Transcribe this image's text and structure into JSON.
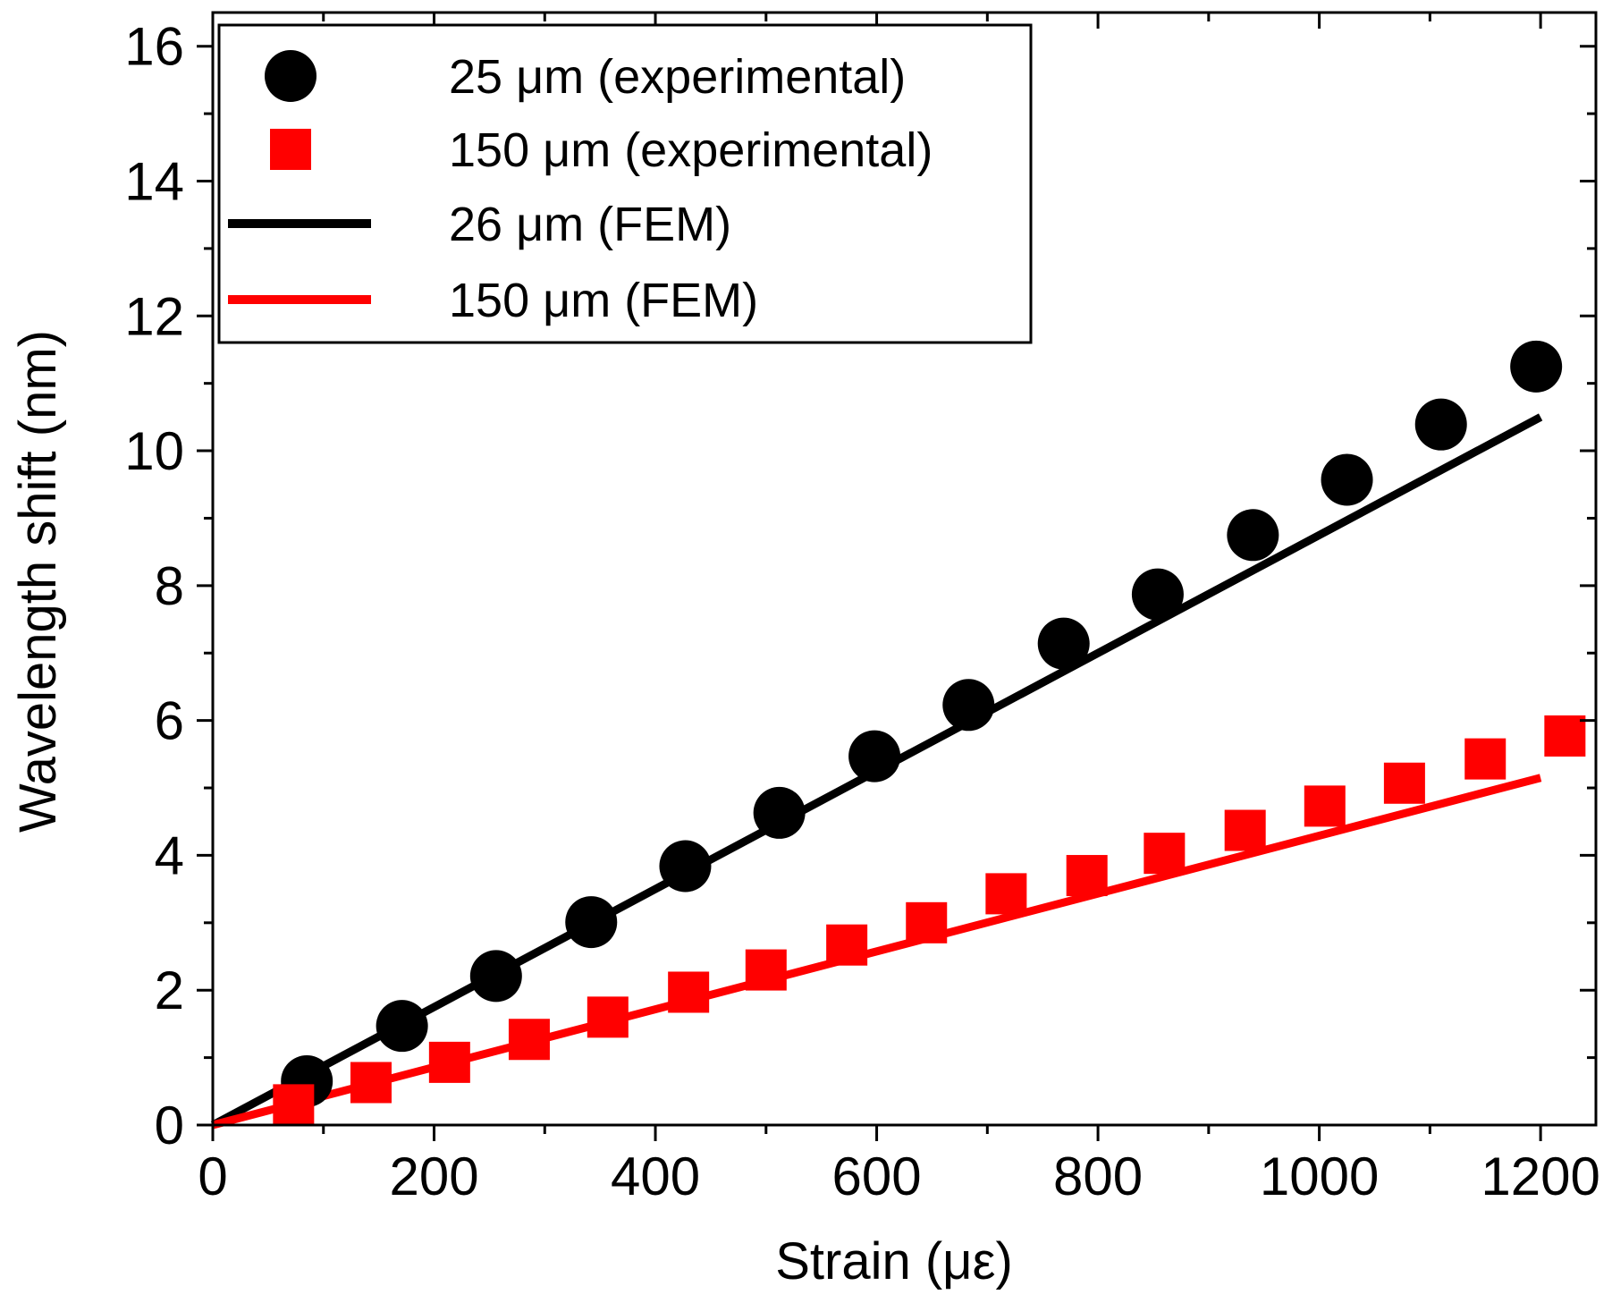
{
  "chart_data": {
    "type": "scatter",
    "xlabel": "Strain (με)",
    "ylabel": "Wavelength shift (nm)",
    "xlim": [
      0,
      1250
    ],
    "ylim": [
      0,
      16.5
    ],
    "xticks": [
      0,
      200,
      400,
      600,
      800,
      1000,
      1200
    ],
    "yticks": [
      0,
      2,
      4,
      6,
      8,
      10,
      12,
      14,
      16
    ],
    "legend_position": "top-left",
    "series": [
      {
        "name": "25 μm (experimental)",
        "kind": "scatter",
        "marker": "circle",
        "color": "#000000",
        "x": [
          85,
          171,
          256,
          342,
          427,
          512,
          598,
          683,
          769,
          854,
          940,
          1025,
          1110,
          1196
        ],
        "y": [
          0.65,
          1.47,
          2.21,
          3.01,
          3.84,
          4.63,
          5.47,
          6.23,
          7.14,
          7.87,
          8.75,
          9.57,
          10.39,
          11.25
        ]
      },
      {
        "name": "150 μm (experimental)",
        "kind": "scatter",
        "marker": "square",
        "color": "#ff0000",
        "x": [
          73,
          143,
          214,
          286,
          357,
          430,
          500,
          573,
          645,
          717,
          790,
          860,
          933,
          1005,
          1077,
          1150,
          1222
        ],
        "y": [
          0.3,
          0.63,
          0.93,
          1.27,
          1.6,
          1.97,
          2.3,
          2.67,
          3.0,
          3.43,
          3.7,
          4.03,
          4.37,
          4.73,
          5.07,
          5.43,
          5.77
        ]
      },
      {
        "name": "26 μm (FEM)",
        "kind": "line",
        "color": "#000000",
        "x": [
          0,
          1200
        ],
        "y": [
          0,
          10.5
        ]
      },
      {
        "name": "150 μm (FEM)",
        "kind": "line",
        "color": "#ff0000",
        "x": [
          0,
          1200
        ],
        "y": [
          0,
          5.15
        ]
      }
    ]
  }
}
